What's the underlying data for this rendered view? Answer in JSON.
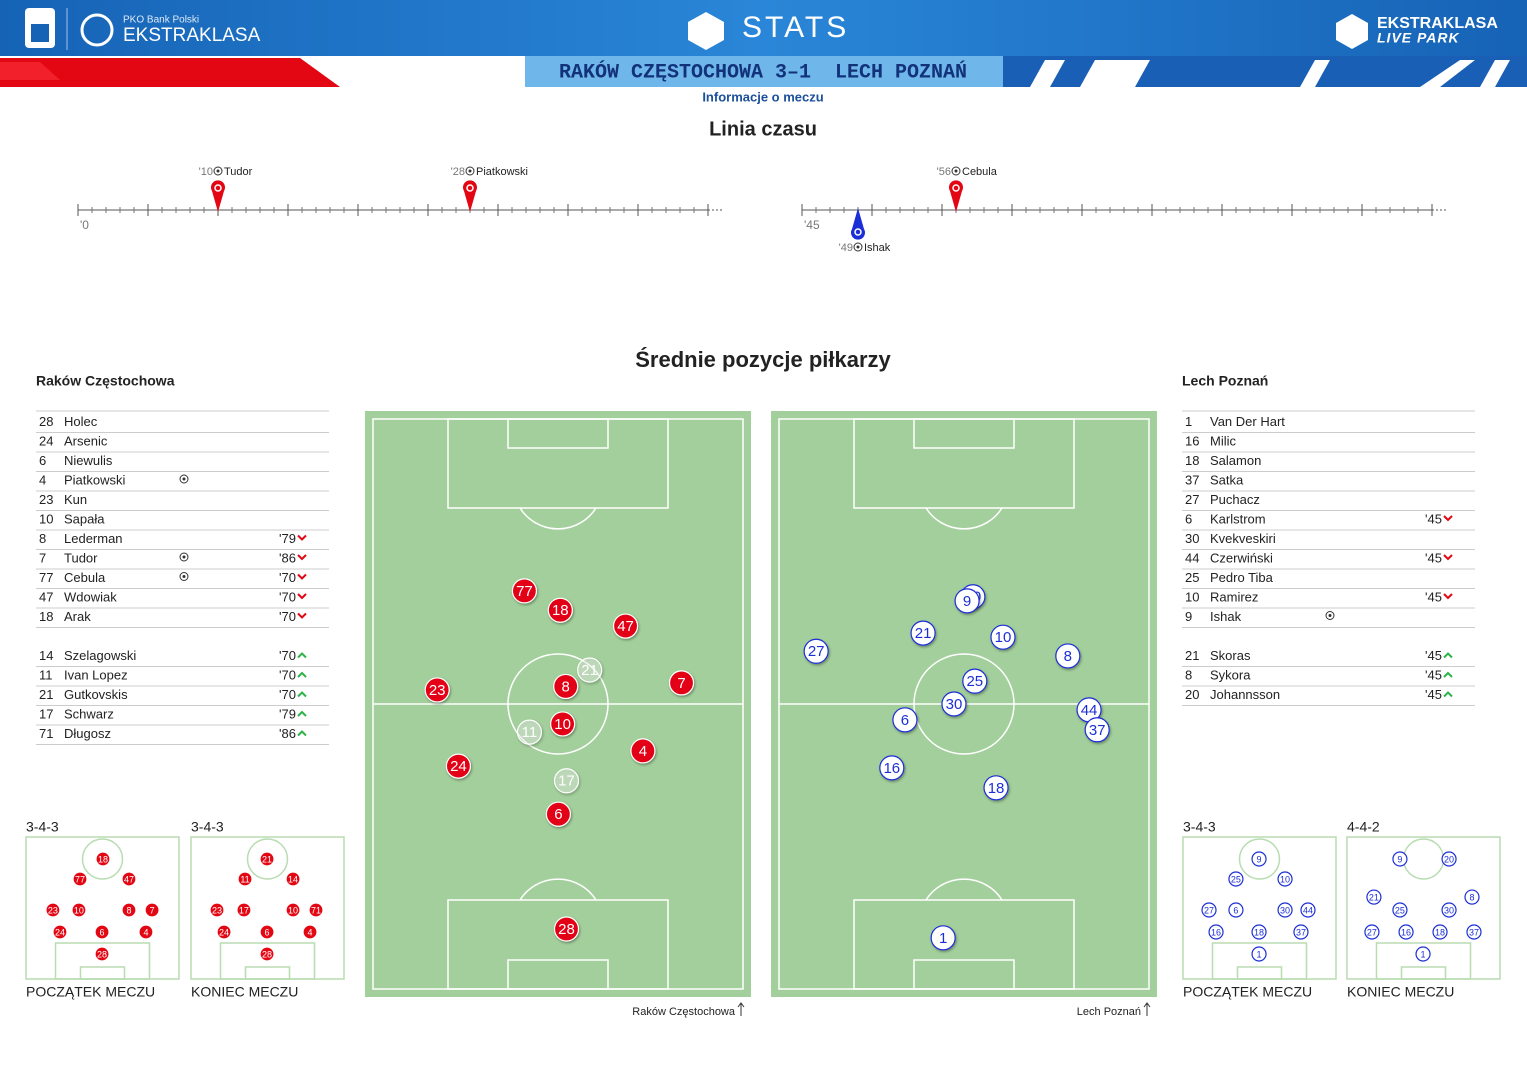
{
  "header": {
    "bank": "PKO Bank Polski",
    "league": "EKSTRAKLASA",
    "stats": "STATS",
    "brand": "EKSTRAKLASA",
    "brand_sub": "LIVE PARK",
    "match": "RAKÓW CZĘSTOCHOWA 3–1  LECH POZNAŃ",
    "link": "Informacje o meczu"
  },
  "timeline": {
    "title": "Linia czasu",
    "halves": [
      {
        "label": "'0",
        "start": 0,
        "end": 45,
        "ticks": [
          0,
          5,
          10,
          15,
          20,
          25,
          30,
          35,
          40,
          45
        ]
      },
      {
        "label": "'45",
        "start": 45,
        "end": 90,
        "ticks": [
          45,
          50,
          55,
          60,
          65,
          70,
          75,
          80,
          85,
          90
        ]
      }
    ],
    "events": [
      {
        "minute": 10,
        "label": "'10",
        "player": "Tudor",
        "team": 0
      },
      {
        "minute": 28,
        "label": "'28",
        "player": "Piatkowski",
        "team": 0
      },
      {
        "minute": 56,
        "label": "'56",
        "player": "Cebula",
        "team": 0
      },
      {
        "minute": 49,
        "label": "'49",
        "player": "Ishak",
        "team": 1
      }
    ]
  },
  "positions": {
    "title": "Średnie pozycje piłkarzy"
  },
  "teams": [
    {
      "name": "Raków Częstochowa",
      "color": "#e30613",
      "marker_style": "filled",
      "lineup": [
        {
          "number": 28,
          "name": "Holec"
        },
        {
          "number": 24,
          "name": "Arsenic"
        },
        {
          "number": 6,
          "name": "Niewulis"
        },
        {
          "number": 4,
          "name": "Piatkowski",
          "goal": true
        },
        {
          "number": 23,
          "name": "Kun"
        },
        {
          "number": 10,
          "name": "Sapała"
        },
        {
          "number": 8,
          "name": "Lederman",
          "minute": "'79"
        },
        {
          "number": 7,
          "name": "Tudor",
          "goal": true,
          "minute": "'86"
        },
        {
          "number": 77,
          "name": "Cebula",
          "goal": true,
          "minute": "'70"
        },
        {
          "number": 47,
          "name": "Wdowiak",
          "minute": "'70"
        },
        {
          "number": 18,
          "name": "Arak",
          "minute": "'70"
        }
      ],
      "subs": [
        {
          "number": 14,
          "name": "Szelagowski",
          "minute": "'70"
        },
        {
          "number": 11,
          "name": "Ivan Lopez",
          "minute": "'70"
        },
        {
          "number": 21,
          "name": "Gutkovskis",
          "minute": "'70"
        },
        {
          "number": 17,
          "name": "Schwarz",
          "minute": "'79"
        },
        {
          "number": 71,
          "name": "Długosz",
          "minute": "'86"
        }
      ],
      "average": [
        {
          "number": 77,
          "x": 41.3,
          "y": 30.7
        },
        {
          "number": 18,
          "x": 50.6,
          "y": 34.0
        },
        {
          "number": 47,
          "x": 67.5,
          "y": 36.7
        },
        {
          "number": 7,
          "x": 82.0,
          "y": 46.4
        },
        {
          "number": 23,
          "x": 18.7,
          "y": 47.6
        },
        {
          "number": 21,
          "x": 58.2,
          "y": 44.2,
          "sub": true
        },
        {
          "number": 8,
          "x": 52.0,
          "y": 47.0
        },
        {
          "number": 11,
          "x": 42.6,
          "y": 54.8,
          "sub": true
        },
        {
          "number": 10,
          "x": 51.2,
          "y": 53.4
        },
        {
          "number": 4,
          "x": 72.0,
          "y": 58.0
        },
        {
          "number": 24,
          "x": 24.2,
          "y": 60.6
        },
        {
          "number": 17,
          "x": 52.2,
          "y": 63.1,
          "sub": true
        },
        {
          "number": 6,
          "x": 50.1,
          "y": 68.8
        },
        {
          "number": 28,
          "x": 52.2,
          "y": 88.4
        }
      ],
      "formations": [
        {
          "label": "3-4-3",
          "caption": "POCZĄTEK MECZU",
          "players": [
            {
              "number": 18,
              "x": 50.3,
              "y": 15.5
            },
            {
              "number": 77,
              "x": 35.3,
              "y": 29.6
            },
            {
              "number": 47,
              "x": 67.3,
              "y": 29.6
            },
            {
              "number": 23,
              "x": 17.6,
              "y": 51.4
            },
            {
              "number": 10,
              "x": 34.6,
              "y": 51.4
            },
            {
              "number": 8,
              "x": 67.3,
              "y": 51.4
            },
            {
              "number": 7,
              "x": 82.4,
              "y": 51.4
            },
            {
              "number": 24,
              "x": 22.2,
              "y": 66.9
            },
            {
              "number": 6,
              "x": 49.7,
              "y": 66.9
            },
            {
              "number": 4,
              "x": 78.4,
              "y": 66.9
            },
            {
              "number": 28,
              "x": 49.7,
              "y": 82.4
            }
          ]
        },
        {
          "label": "3-4-3",
          "caption": "KONIEC MECZU",
          "players": [
            {
              "number": 21,
              "x": 49.7,
              "y": 15.5
            },
            {
              "number": 11,
              "x": 35.3,
              "y": 29.6
            },
            {
              "number": 14,
              "x": 66.7,
              "y": 29.6
            },
            {
              "number": 23,
              "x": 17.0,
              "y": 51.4
            },
            {
              "number": 17,
              "x": 34.6,
              "y": 51.4
            },
            {
              "number": 10,
              "x": 66.7,
              "y": 51.4
            },
            {
              "number": 71,
              "x": 81.7,
              "y": 51.4
            },
            {
              "number": 24,
              "x": 21.6,
              "y": 66.9
            },
            {
              "number": 6,
              "x": 49.7,
              "y": 66.9
            },
            {
              "number": 4,
              "x": 77.8,
              "y": 66.9
            },
            {
              "number": 28,
              "x": 49.7,
              "y": 82.4
            }
          ]
        }
      ]
    },
    {
      "name": "Lech Poznań",
      "color": "#1c2fd6",
      "marker_style": "outline",
      "lineup": [
        {
          "number": 1,
          "name": "Van Der Hart"
        },
        {
          "number": 16,
          "name": "Milic"
        },
        {
          "number": 18,
          "name": "Salamon"
        },
        {
          "number": 37,
          "name": "Satka"
        },
        {
          "number": 27,
          "name": "Puchacz"
        },
        {
          "number": 6,
          "name": "Karlstrom",
          "minute": "'45"
        },
        {
          "number": 30,
          "name": "Kvekveskiri"
        },
        {
          "number": 44,
          "name": "Czerwiński",
          "minute": "'45"
        },
        {
          "number": 25,
          "name": "Pedro Tiba"
        },
        {
          "number": 10,
          "name": "Ramirez",
          "minute": "'45"
        },
        {
          "number": 9,
          "name": "Ishak",
          "goal": true
        }
      ],
      "subs": [
        {
          "number": 21,
          "name": "Skoras",
          "minute": "'45"
        },
        {
          "number": 8,
          "name": "Sykora",
          "minute": "'45"
        },
        {
          "number": 20,
          "name": "Johannsson",
          "minute": "'45"
        }
      ],
      "average": [
        {
          "number": 20,
          "x": 52.3,
          "y": 31.7
        },
        {
          "number": 9,
          "x": 50.8,
          "y": 32.4
        },
        {
          "number": 27,
          "x": 11.7,
          "y": 41.0
        },
        {
          "number": 21,
          "x": 39.4,
          "y": 37.9
        },
        {
          "number": 10,
          "x": 60.1,
          "y": 38.6
        },
        {
          "number": 8,
          "x": 76.9,
          "y": 41.8
        },
        {
          "number": 25,
          "x": 52.8,
          "y": 46.1
        },
        {
          "number": 30,
          "x": 47.4,
          "y": 50.0
        },
        {
          "number": 6,
          "x": 34.7,
          "y": 52.7
        },
        {
          "number": 44,
          "x": 82.4,
          "y": 51.0
        },
        {
          "number": 37,
          "x": 84.5,
          "y": 54.4
        },
        {
          "number": 16,
          "x": 31.3,
          "y": 60.9
        },
        {
          "number": 18,
          "x": 58.3,
          "y": 64.3
        },
        {
          "number": 1,
          "x": 44.6,
          "y": 89.9
        }
      ],
      "formations": [
        {
          "label": "3-4-3",
          "caption": "POCZĄTEK MECZU",
          "players": [
            {
              "number": 9,
              "x": 49.7,
              "y": 15.5
            },
            {
              "number": 25,
              "x": 34.6,
              "y": 29.6
            },
            {
              "number": 10,
              "x": 66.7,
              "y": 29.6
            },
            {
              "number": 27,
              "x": 17.0,
              "y": 51.4
            },
            {
              "number": 6,
              "x": 34.6,
              "y": 51.4
            },
            {
              "number": 30,
              "x": 66.7,
              "y": 51.4
            },
            {
              "number": 44,
              "x": 81.7,
              "y": 51.4
            },
            {
              "number": 16,
              "x": 21.6,
              "y": 66.9
            },
            {
              "number": 18,
              "x": 49.7,
              "y": 66.9
            },
            {
              "number": 37,
              "x": 77.1,
              "y": 66.9
            },
            {
              "number": 1,
              "x": 49.7,
              "y": 82.4
            }
          ]
        },
        {
          "label": "4-4-2",
          "caption": "KONIEC MECZU",
          "players": [
            {
              "number": 9,
              "x": 34.6,
              "y": 15.5
            },
            {
              "number": 20,
              "x": 66.7,
              "y": 15.5
            },
            {
              "number": 21,
              "x": 17.6,
              "y": 42.3
            },
            {
              "number": 8,
              "x": 81.7,
              "y": 42.3
            },
            {
              "number": 25,
              "x": 34.6,
              "y": 51.4
            },
            {
              "number": 30,
              "x": 66.7,
              "y": 51.4
            },
            {
              "number": 27,
              "x": 16.3,
              "y": 66.9
            },
            {
              "number": 16,
              "x": 38.6,
              "y": 66.9
            },
            {
              "number": 18,
              "x": 60.8,
              "y": 66.9
            },
            {
              "number": 37,
              "x": 83.0,
              "y": 66.9
            },
            {
              "number": 1,
              "x": 49.7,
              "y": 82.4
            }
          ]
        }
      ]
    }
  ]
}
